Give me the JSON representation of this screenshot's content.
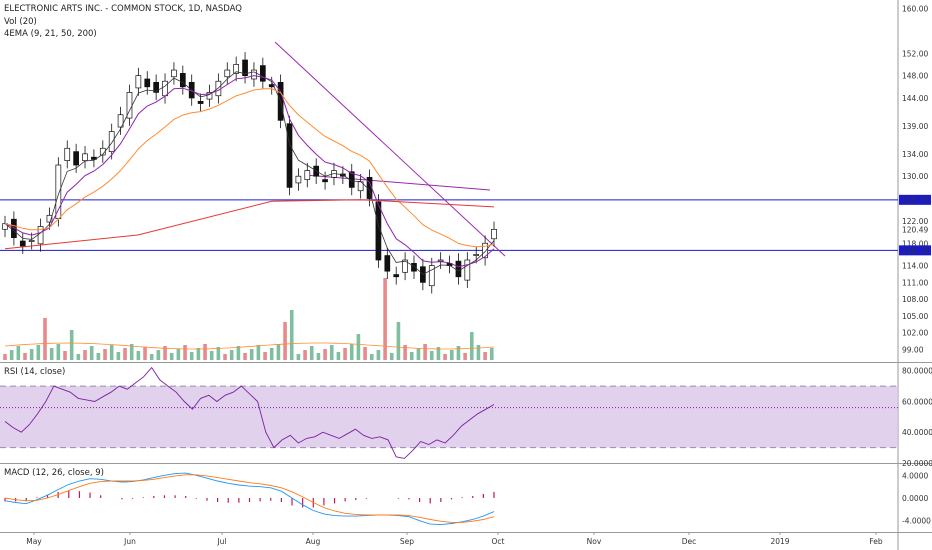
{
  "header": {
    "title": "ELECTRONIC ARTS INC. - COMMON STOCK, 1D, NASDAQ",
    "vol_label": "Vol (20)",
    "ema_label": "4EMA (9, 21, 50, 200)"
  },
  "rsi": {
    "label": "RSI (14, close)",
    "ticks": [
      "80.0000",
      "60.0000",
      "40.0000",
      "20.0000"
    ]
  },
  "macd": {
    "label": "MACD (12, 26, close, 9)",
    "ticks": [
      "4.0000",
      "0.0000",
      "-4.0000"
    ]
  },
  "price_ticks": [
    "160.00",
    "152.00",
    "148.00",
    "144.00",
    "139.00",
    "134.00",
    "130.00",
    "125.77",
    "122.00",
    "120.49",
    "118.00",
    "116.73",
    "114.00",
    "111.00",
    "108.00",
    "105.00",
    "102.00",
    "99.00"
  ],
  "price_labels": {
    "upper_line": "125.77",
    "lower_line": "116.73",
    "last": "120.49"
  },
  "month_labels": [
    "May",
    "Jun",
    "Jul",
    "Aug",
    "Sep",
    "Oct",
    "Nov",
    "Dec",
    "2019",
    "Feb"
  ],
  "colors": {
    "up_candle": "#ffffff",
    "down_candle": "#111111",
    "volume_up": "#7fbfa0",
    "volume_down": "#e88a8a",
    "ema9": "#333333",
    "ema21": "#8e24aa",
    "ema50": "#ff8c32",
    "ema200": "#e53935",
    "hline": "#1a1acc",
    "trendline": "#9c27b0",
    "rsi_band": "#d9c6e8",
    "rsi_line": "#7b1fa2",
    "macd_line": "#2196f3",
    "signal_line": "#ff7a1a",
    "histogram": "#c2185b"
  },
  "chart_data": {
    "type": "candlestick",
    "title": "ELECTRONIC ARTS INC. - COMMON STOCK, 1D, NASDAQ",
    "x_range_months": [
      "May",
      "Jun",
      "Jul",
      "Aug",
      "Sep",
      "Oct",
      "Nov",
      "Dec",
      "2019",
      "Feb"
    ],
    "horizontal_levels": [
      125.77,
      116.73
    ],
    "last_price": 120.49,
    "ylim": [
      98,
      161
    ],
    "close_path": [
      [
        0,
        121.5
      ],
      [
        2,
        119
      ],
      [
        4,
        117.5
      ],
      [
        6,
        118.5
      ],
      [
        8,
        121
      ],
      [
        10,
        123
      ],
      [
        12,
        132
      ],
      [
        14,
        135
      ],
      [
        16,
        132
      ],
      [
        18,
        134
      ],
      [
        20,
        133
      ],
      [
        22,
        135
      ],
      [
        24,
        138
      ],
      [
        26,
        141
      ],
      [
        28,
        145
      ],
      [
        30,
        148
      ],
      [
        32,
        146
      ],
      [
        34,
        145
      ],
      [
        36,
        147
      ],
      [
        38,
        149
      ],
      [
        40,
        146
      ],
      [
        42,
        144
      ],
      [
        44,
        143
      ],
      [
        46,
        145
      ],
      [
        48,
        147
      ],
      [
        50,
        149
      ],
      [
        52,
        150
      ],
      [
        54,
        148
      ],
      [
        56,
        149
      ],
      [
        58,
        147
      ],
      [
        60,
        146
      ],
      [
        62,
        140
      ],
      [
        64,
        128
      ],
      [
        66,
        130
      ],
      [
        68,
        131
      ],
      [
        70,
        130
      ],
      [
        72,
        129
      ],
      [
        74,
        131
      ],
      [
        76,
        130
      ],
      [
        78,
        128
      ],
      [
        80,
        129
      ],
      [
        82,
        126
      ],
      [
        84,
        115
      ],
      [
        86,
        113
      ],
      [
        88,
        112
      ],
      [
        90,
        115
      ],
      [
        92,
        113
      ],
      [
        94,
        111
      ],
      [
        96,
        114
      ],
      [
        98,
        115
      ],
      [
        100,
        114
      ],
      [
        102,
        112
      ],
      [
        104,
        115
      ],
      [
        106,
        116
      ],
      [
        108,
        118
      ],
      [
        110,
        120.49
      ]
    ],
    "rsi_range": [
      20,
      80
    ],
    "macd_range": [
      -6,
      6
    ]
  }
}
